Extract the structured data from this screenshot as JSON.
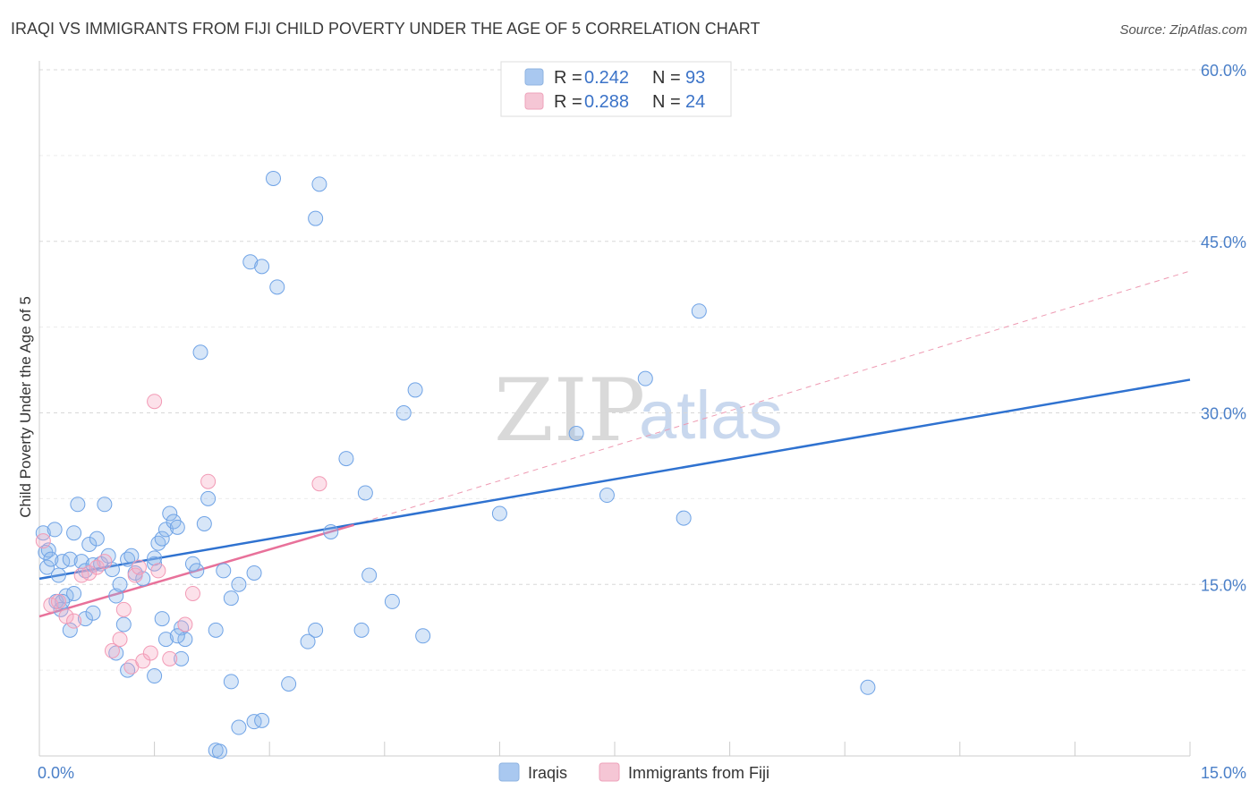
{
  "header": {
    "title": "IRAQI VS IMMIGRANTS FROM FIJI CHILD POVERTY UNDER THE AGE OF 5 CORRELATION CHART",
    "source": "Source: ZipAtlas.com"
  },
  "watermark": {
    "zip": "ZIP",
    "atlas": "atlas"
  },
  "legend": {
    "r_label": "R =",
    "n_label": "N =",
    "entries": [
      {
        "r": "0.242",
        "n": "93",
        "color": "#a9c8f0"
      },
      {
        "r": "0.288",
        "n": "24",
        "color": "#f5b8cc"
      }
    ]
  },
  "bottom_legend": [
    "Iraqis",
    "Immigrants from Fiji"
  ],
  "chart_data": {
    "type": "scatter",
    "title": "IRAQI VS IMMIGRANTS FROM FIJI CHILD POVERTY UNDER THE AGE OF 5 CORRELATION CHART",
    "ylabel": "Child Poverty Under the Age of 5",
    "xlabel": "",
    "xlim": [
      0,
      15
    ],
    "ylim": [
      0,
      60
    ],
    "x_ticks": [
      "0.0%",
      "15.0%"
    ],
    "y_ticks": [
      "15.0%",
      "30.0%",
      "45.0%",
      "60.0%"
    ],
    "grid": true,
    "legend_position": "top-center",
    "series": [
      {
        "name": "Iraqis",
        "color": "#6fa3e6",
        "trend": {
          "x": [
            0,
            15
          ],
          "y": [
            15.5,
            32.9
          ]
        },
        "points": [
          [
            0.05,
            19.5
          ],
          [
            0.08,
            17.8
          ],
          [
            0.1,
            16.5
          ],
          [
            0.12,
            18.0
          ],
          [
            0.15,
            17.2
          ],
          [
            0.2,
            19.8
          ],
          [
            0.25,
            15.8
          ],
          [
            0.3,
            17.0
          ],
          [
            0.22,
            13.5
          ],
          [
            0.28,
            12.8
          ],
          [
            0.35,
            14.0
          ],
          [
            0.4,
            17.2
          ],
          [
            0.45,
            19.5
          ],
          [
            0.5,
            22.0
          ],
          [
            0.55,
            17.0
          ],
          [
            0.6,
            16.2
          ],
          [
            0.65,
            18.5
          ],
          [
            0.7,
            16.7
          ],
          [
            0.75,
            19.0
          ],
          [
            0.8,
            16.8
          ],
          [
            0.85,
            22.0
          ],
          [
            0.9,
            17.5
          ],
          [
            0.95,
            16.3
          ],
          [
            1.0,
            14.0
          ],
          [
            1.05,
            15.0
          ],
          [
            1.1,
            11.5
          ],
          [
            1.15,
            17.2
          ],
          [
            1.2,
            17.5
          ],
          [
            1.25,
            16.0
          ],
          [
            1.35,
            15.5
          ],
          [
            1.5,
            16.8
          ],
          [
            1.55,
            18.6
          ],
          [
            1.6,
            19.0
          ],
          [
            1.65,
            19.8
          ],
          [
            1.7,
            21.2
          ],
          [
            1.75,
            20.5
          ],
          [
            1.8,
            20.0
          ],
          [
            1.85,
            11.2
          ],
          [
            1.9,
            10.2
          ],
          [
            2.0,
            16.8
          ],
          [
            2.05,
            16.2
          ],
          [
            2.1,
            35.3
          ],
          [
            2.15,
            20.3
          ],
          [
            2.2,
            22.5
          ],
          [
            2.3,
            11.0
          ],
          [
            2.4,
            16.2
          ],
          [
            2.5,
            13.8
          ],
          [
            2.6,
            15.0
          ],
          [
            2.75,
            43.2
          ],
          [
            2.8,
            16.0
          ],
          [
            2.9,
            42.8
          ],
          [
            3.05,
            50.5
          ],
          [
            3.1,
            41.0
          ],
          [
            3.25,
            6.3
          ],
          [
            3.5,
            10.0
          ],
          [
            3.6,
            11.0
          ],
          [
            3.6,
            47.0
          ],
          [
            3.65,
            50.0
          ],
          [
            3.8,
            19.6
          ],
          [
            4.0,
            26.0
          ],
          [
            4.2,
            11.0
          ],
          [
            4.25,
            23.0
          ],
          [
            4.3,
            15.8
          ],
          [
            4.6,
            13.5
          ],
          [
            4.75,
            30.0
          ],
          [
            4.9,
            32.0
          ],
          [
            5.0,
            10.5
          ],
          [
            6.0,
            21.2
          ],
          [
            7.0,
            28.2
          ],
          [
            7.4,
            22.8
          ],
          [
            7.9,
            33.0
          ],
          [
            8.4,
            20.8
          ],
          [
            8.6,
            38.9
          ],
          [
            10.8,
            6.0
          ],
          [
            1.5,
            17.3
          ],
          [
            1.6,
            12.0
          ],
          [
            2.5,
            6.5
          ],
          [
            2.8,
            3.0
          ],
          [
            2.9,
            3.1
          ],
          [
            2.6,
            2.5
          ],
          [
            2.3,
            0.5
          ],
          [
            2.35,
            0.4
          ],
          [
            1.0,
            9.0
          ],
          [
            1.15,
            7.5
          ],
          [
            1.5,
            7.0
          ],
          [
            1.65,
            10.2
          ],
          [
            1.8,
            10.5
          ],
          [
            1.85,
            8.5
          ],
          [
            0.45,
            14.2
          ],
          [
            0.6,
            12.0
          ],
          [
            0.7,
            12.5
          ],
          [
            0.4,
            11.0
          ],
          [
            0.3,
            13.5
          ]
        ]
      },
      {
        "name": "Immigrants from Fiji",
        "color": "#f29ab5",
        "trend": {
          "x": [
            0,
            4.1
          ],
          "y": [
            12.2,
            20.2
          ]
        },
        "trend_extended": {
          "x": [
            4.1,
            15
          ],
          "y": [
            20.2,
            42.4
          ]
        },
        "points": [
          [
            0.05,
            18.8
          ],
          [
            0.15,
            13.2
          ],
          [
            0.25,
            13.5
          ],
          [
            0.35,
            12.2
          ],
          [
            0.45,
            11.8
          ],
          [
            0.55,
            15.8
          ],
          [
            0.65,
            16.0
          ],
          [
            0.75,
            16.5
          ],
          [
            0.85,
            17.0
          ],
          [
            0.95,
            9.2
          ],
          [
            1.05,
            10.2
          ],
          [
            1.1,
            12.8
          ],
          [
            1.2,
            7.8
          ],
          [
            1.25,
            15.8
          ],
          [
            1.3,
            16.5
          ],
          [
            1.35,
            8.3
          ],
          [
            1.45,
            9.0
          ],
          [
            1.5,
            31.0
          ],
          [
            1.55,
            16.2
          ],
          [
            1.7,
            8.5
          ],
          [
            1.9,
            11.5
          ],
          [
            2.0,
            14.2
          ],
          [
            2.2,
            24.0
          ],
          [
            3.65,
            23.8
          ]
        ]
      }
    ]
  }
}
